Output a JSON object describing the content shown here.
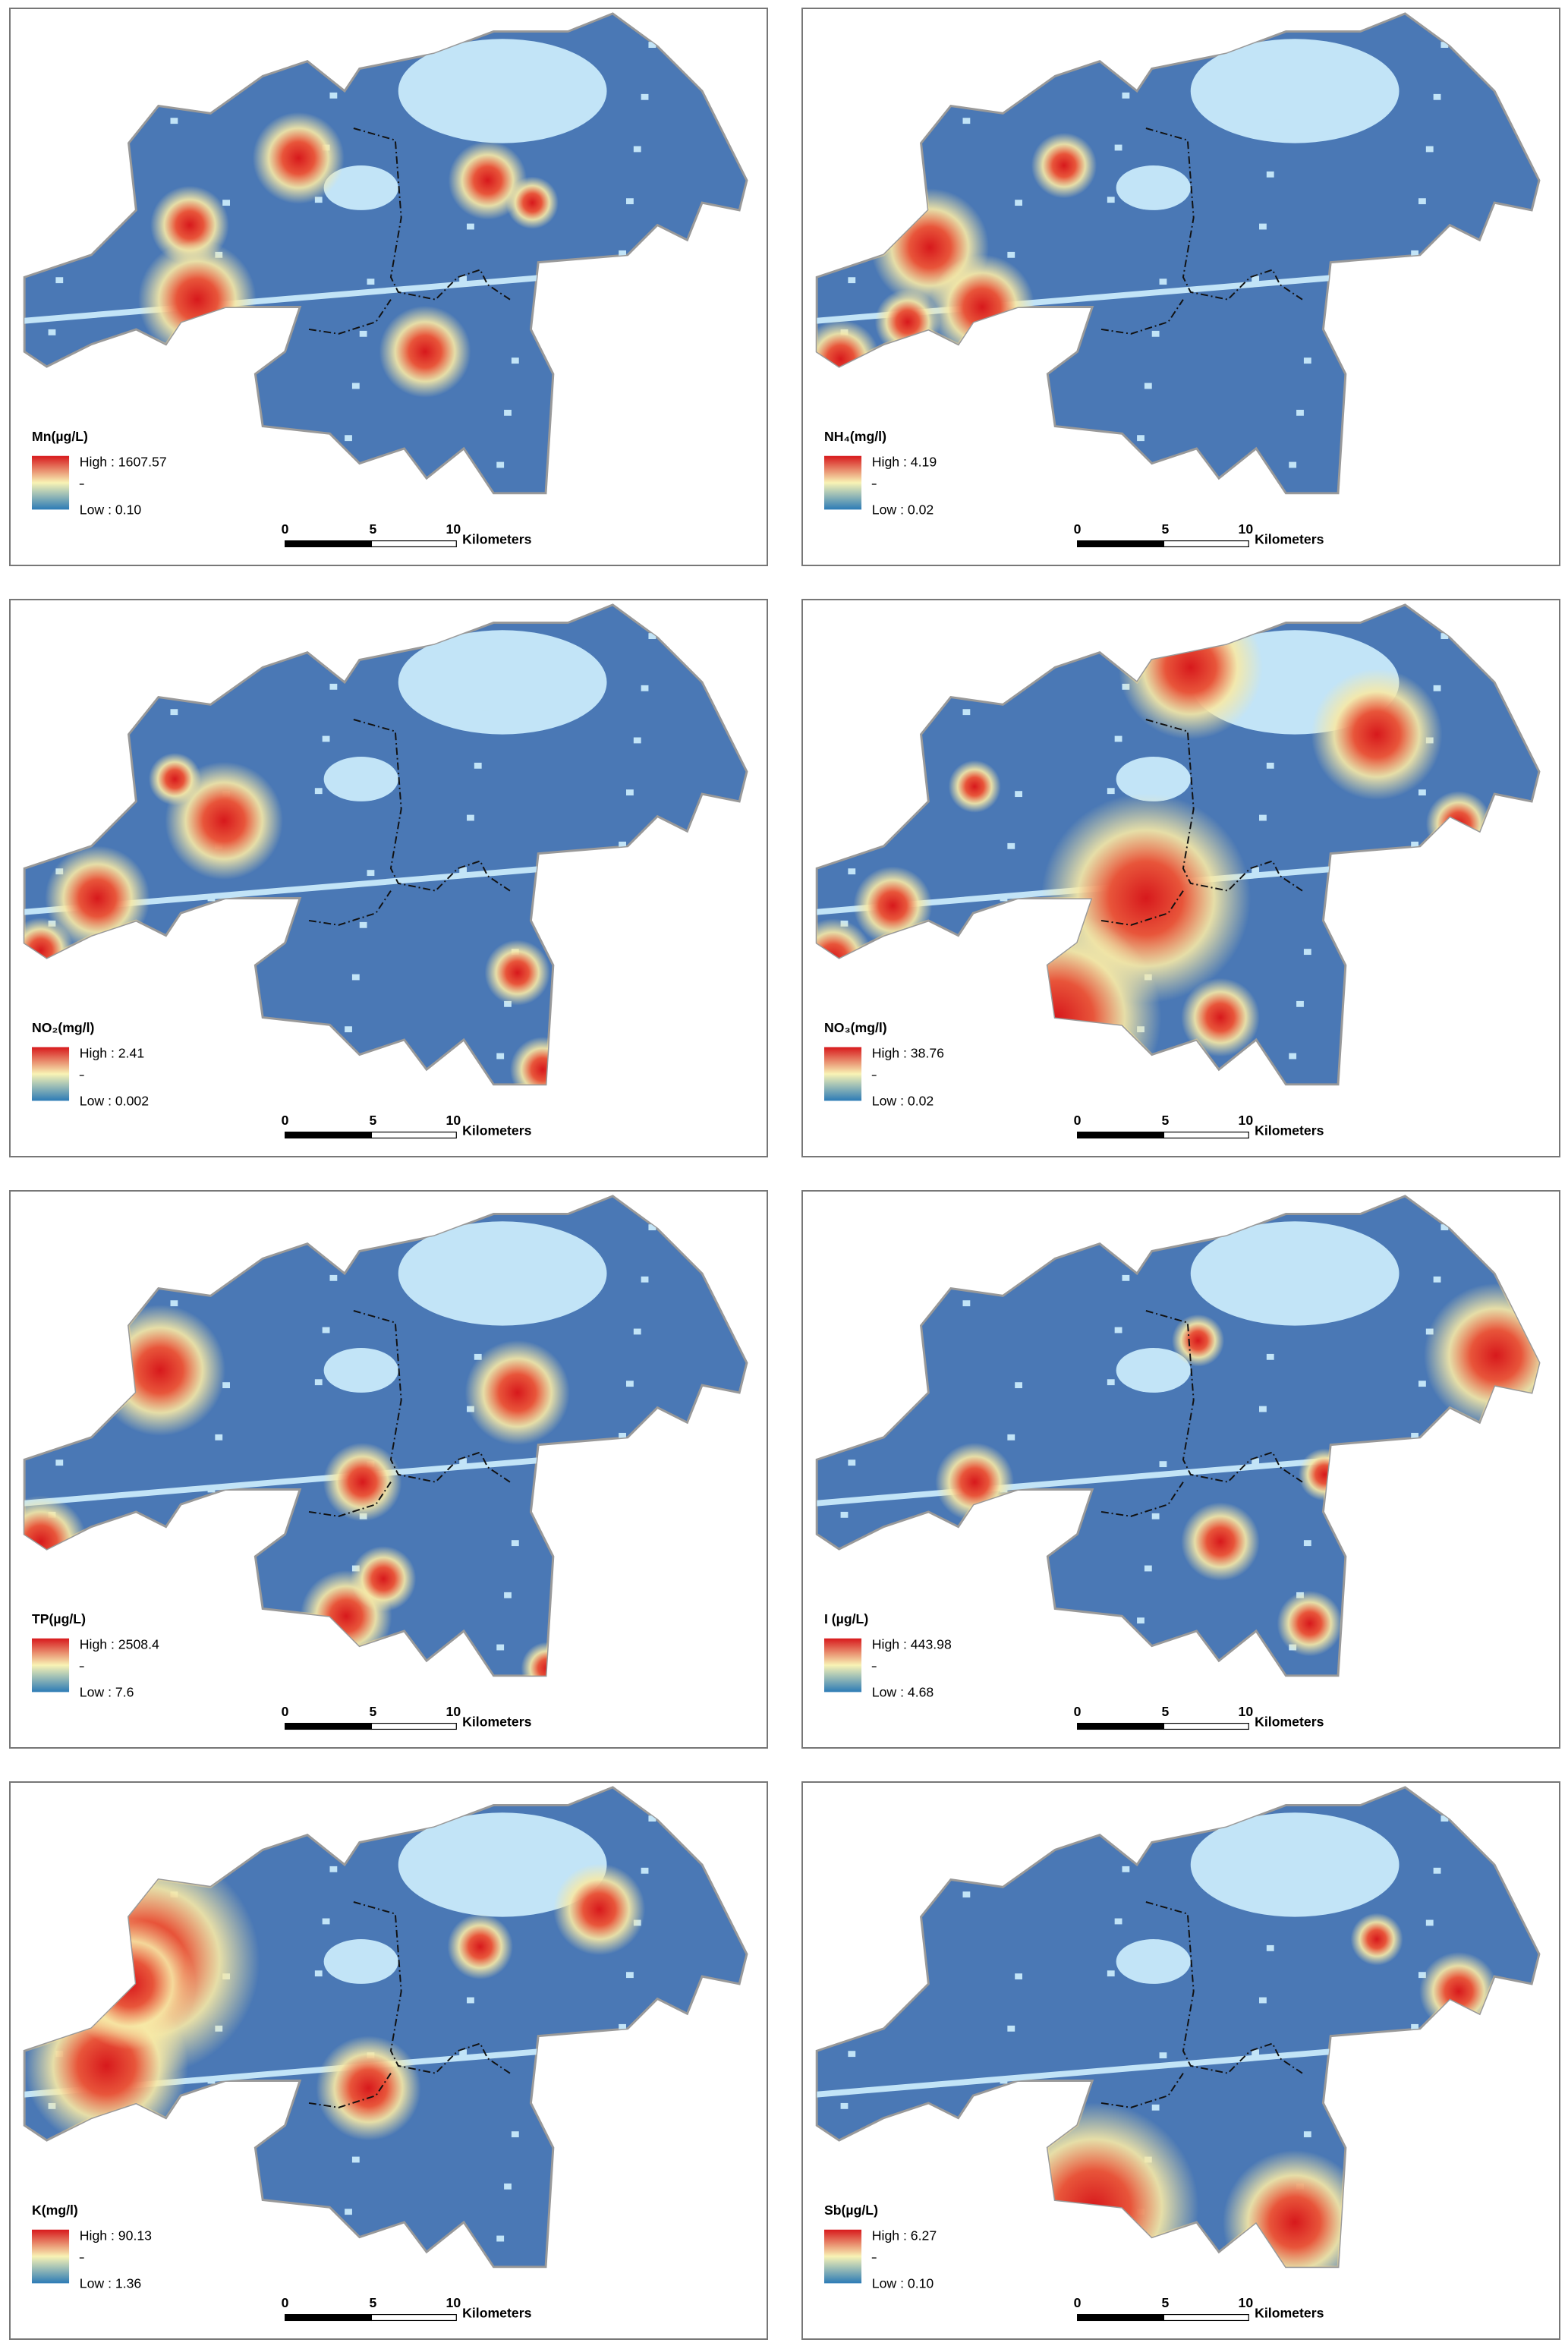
{
  "panels": [
    {
      "legend_title": "Mn(µg/L)",
      "high": "High : 1607.57",
      "low": "Low : 0.10"
    },
    {
      "legend_title": "NH₄(mg/l)",
      "high": "High : 4.19",
      "low": "Low : 0.02"
    },
    {
      "legend_title": "NO₂(mg/l)",
      "high": "High : 2.41",
      "low": "Low : 0.002"
    },
    {
      "legend_title": "NO₃(mg/l)",
      "high": "High : 38.76",
      "low": "Low : 0.02"
    },
    {
      "legend_title": "TP(µg/L)",
      "high": "High : 2508.4",
      "low": "Low : 7.6"
    },
    {
      "legend_title": "I (µg/L)",
      "high": "High : 443.98",
      "low": "Low : 4.68"
    },
    {
      "legend_title": "K(mg/l)",
      "high": "High : 90.13",
      "low": "Low : 1.36"
    },
    {
      "legend_title": "Sb(µg/L)",
      "high": "High : 6.27",
      "low": "Low : 0.10"
    }
  ],
  "scale_bar": {
    "ticks": [
      "0",
      "5",
      "10"
    ],
    "unit": "Kilometers"
  }
}
